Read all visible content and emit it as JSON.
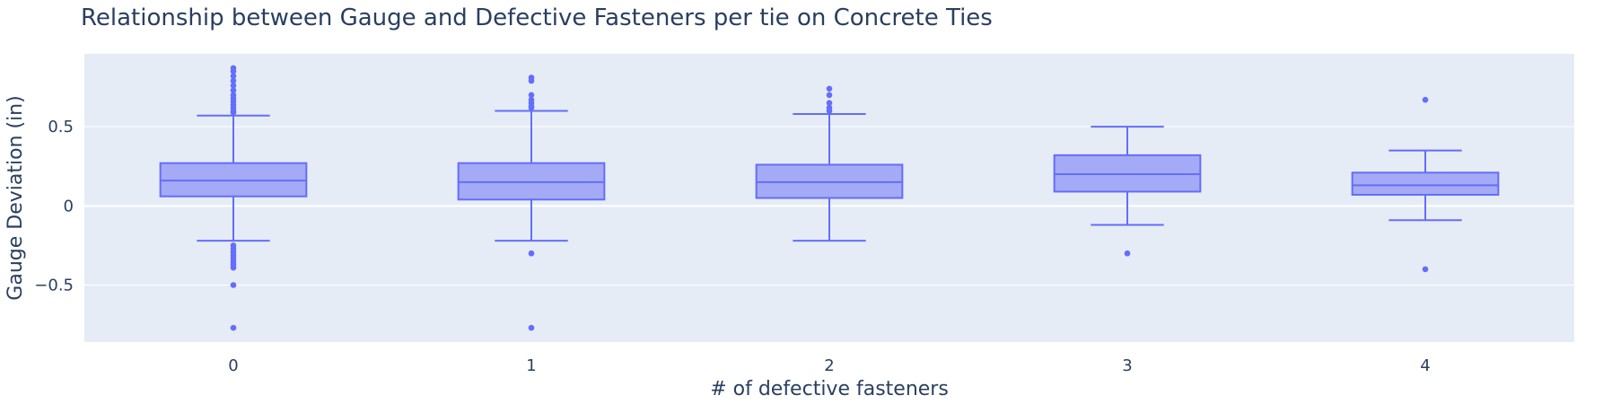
{
  "chart_data": {
    "type": "box",
    "title": "Relationship between Gauge and Defective Fasteners per tie on Concrete Ties",
    "xlabel": "# of defective fasteners",
    "ylabel": "Gauge Deviation (in)",
    "ylim": [
      -0.86,
      0.96
    ],
    "yticks": [
      -0.5,
      0,
      0.5
    ],
    "ytick_labels": [
      "−0.5",
      "0",
      "0.5"
    ],
    "grid": true,
    "colors": {
      "plot_bg": "#e5ecf6",
      "grid": "#ffffff",
      "box_line": "#636efa",
      "box_fill": "#a4aaf5",
      "text": "#2a3f5f"
    },
    "categories": [
      "0",
      "1",
      "2",
      "3",
      "4"
    ],
    "boxes": [
      {
        "category": "0",
        "lower_whisker": -0.22,
        "q1": 0.06,
        "median": 0.16,
        "q3": 0.27,
        "upper_whisker": 0.57,
        "outliers": [
          0.87,
          0.85,
          0.82,
          0.79,
          0.76,
          0.73,
          0.7,
          0.68,
          0.66,
          0.64,
          0.62,
          0.6,
          0.59,
          -0.25,
          -0.27,
          -0.29,
          -0.31,
          -0.33,
          -0.35,
          -0.37,
          -0.39,
          -0.5,
          -0.77
        ]
      },
      {
        "category": "1",
        "lower_whisker": -0.22,
        "q1": 0.04,
        "median": 0.15,
        "q3": 0.27,
        "upper_whisker": 0.6,
        "outliers": [
          0.81,
          0.79,
          0.7,
          0.67,
          0.65,
          0.63,
          0.62,
          -0.3,
          -0.77
        ]
      },
      {
        "category": "2",
        "lower_whisker": -0.22,
        "q1": 0.05,
        "median": 0.15,
        "q3": 0.26,
        "upper_whisker": 0.58,
        "outliers": [
          0.74,
          0.7,
          0.65,
          0.62,
          0.6
        ]
      },
      {
        "category": "3",
        "lower_whisker": -0.12,
        "q1": 0.09,
        "median": 0.2,
        "q3": 0.32,
        "upper_whisker": 0.5,
        "outliers": [
          -0.3
        ]
      },
      {
        "category": "4",
        "lower_whisker": -0.09,
        "q1": 0.07,
        "median": 0.13,
        "q3": 0.21,
        "upper_whisker": 0.35,
        "outliers": [
          0.67,
          -0.4
        ]
      }
    ]
  }
}
